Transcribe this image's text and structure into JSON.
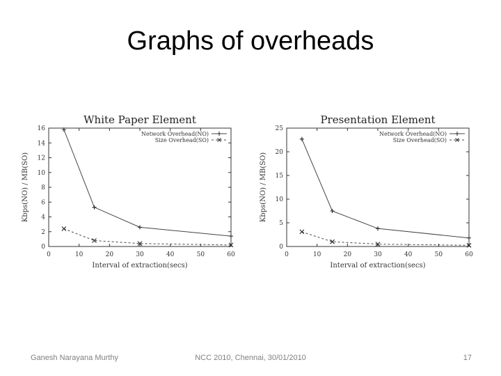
{
  "slide": {
    "title": "Graphs of overheads",
    "footer_left": "Ganesh Narayana Murthy",
    "footer_center": "NCC 2010, Chennai, 30/01/2010",
    "footer_right": "17"
  },
  "chart_data": [
    {
      "type": "line",
      "title": "White Paper Element",
      "xlabel": "Interval of extraction(secs)",
      "ylabel": "Kbps(NO) / MB(SO)",
      "xlim": [
        0,
        60
      ],
      "ylim": [
        0,
        16
      ],
      "xticks": [
        0,
        10,
        20,
        30,
        40,
        50,
        60
      ],
      "yticks": [
        0,
        2,
        4,
        6,
        8,
        10,
        12,
        14,
        16
      ],
      "grid": false,
      "legend_position": "top-right",
      "series": [
        {
          "name": "Network Overhead(NO)",
          "marker": "+",
          "dashed": false,
          "x": [
            5,
            15,
            30,
            60
          ],
          "y": [
            15.8,
            5.3,
            2.6,
            1.4
          ]
        },
        {
          "name": "Size Overhead(SO)",
          "marker": "x",
          "dashed": true,
          "x": [
            5,
            15,
            30,
            60
          ],
          "y": [
            2.4,
            0.8,
            0.4,
            0.2
          ]
        }
      ]
    },
    {
      "type": "line",
      "title": "Presentation Element",
      "xlabel": "Interval of extraction(secs)",
      "ylabel": "Kbps(NO) / MB(SO)",
      "xlim": [
        0,
        60
      ],
      "ylim": [
        0,
        25
      ],
      "xticks": [
        0,
        10,
        20,
        30,
        40,
        50,
        60
      ],
      "yticks": [
        0,
        5,
        10,
        15,
        20,
        25
      ],
      "grid": false,
      "legend_position": "top-right",
      "series": [
        {
          "name": "Network Overhead(NO)",
          "marker": "+",
          "dashed": false,
          "x": [
            5,
            15,
            30,
            60
          ],
          "y": [
            22.7,
            7.5,
            3.8,
            1.8
          ]
        },
        {
          "name": "Size Overhead(SO)",
          "marker": "x",
          "dashed": true,
          "x": [
            5,
            15,
            30,
            60
          ],
          "y": [
            3.1,
            1.0,
            0.5,
            0.25
          ]
        }
      ]
    }
  ]
}
